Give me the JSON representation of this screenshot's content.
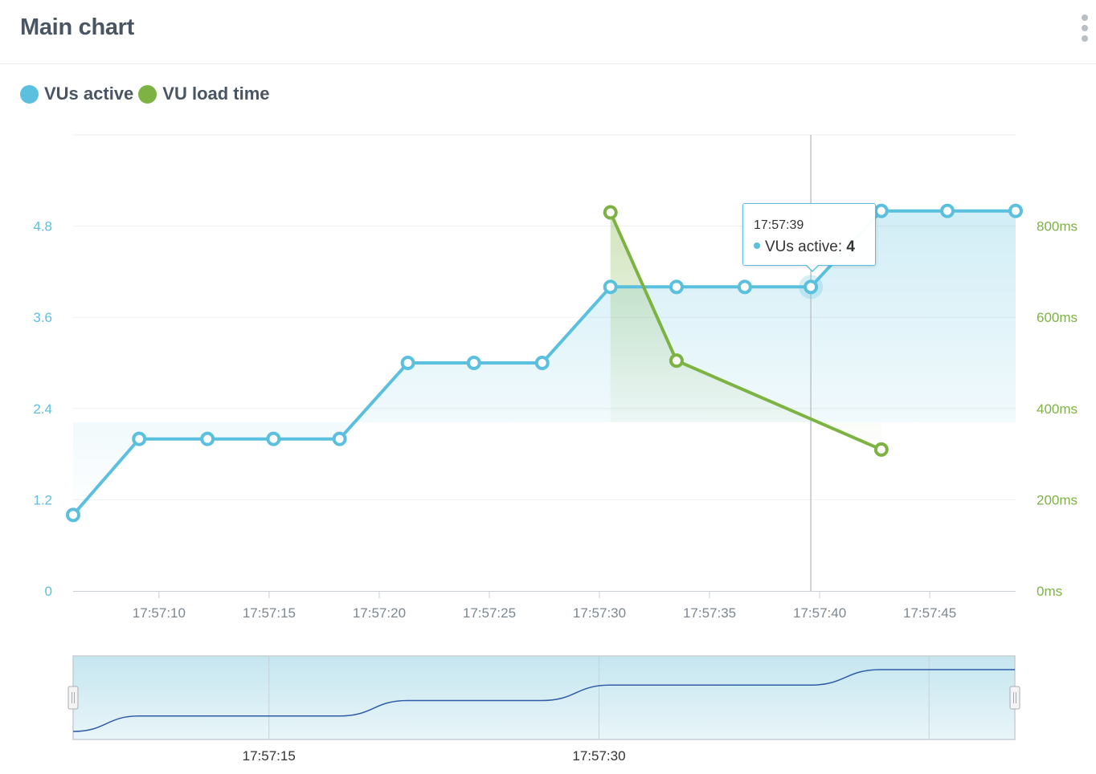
{
  "header": {
    "title": "Main chart",
    "menu_icon": "kebab-menu-icon"
  },
  "legend": [
    {
      "label": "VUs active",
      "color": "#5bc0de"
    },
    {
      "label": "VU load time",
      "color": "#7cb342"
    }
  ],
  "tooltip": {
    "time": "17:57:39",
    "series": "VUs active",
    "value": "4"
  },
  "colors": {
    "vus": "#5bc0de",
    "load": "#7cb342",
    "navigator_line": "#2e5aa8"
  },
  "chart_data": {
    "type": "line",
    "title": "Main chart",
    "x_axis": {
      "type": "time",
      "range": [
        "17:57:06.1",
        "17:57:48.9"
      ],
      "tick_labels": [
        "17:57:10",
        "17:57:15",
        "17:57:20",
        "17:57:25",
        "17:57:30",
        "17:57:35",
        "17:57:40",
        "17:57:45"
      ],
      "ticks": [
        "17:57:10",
        "17:57:15",
        "17:57:20",
        "17:57:25",
        "17:57:30",
        "17:57:35",
        "17:57:40",
        "17:57:45"
      ]
    },
    "y_axis_left": {
      "range": [
        0,
        6
      ],
      "tick_labels": [
        "0",
        "1.2",
        "2.4",
        "3.6",
        "4.8"
      ],
      "ticks": [
        0,
        1.2,
        2.4,
        3.6,
        4.8
      ]
    },
    "y_axis_right": {
      "range": [
        0,
        1000
      ],
      "tick_labels": [
        "0ms",
        "200ms",
        "400ms",
        "600ms",
        "800ms"
      ],
      "ticks": [
        0,
        200,
        400,
        600,
        800
      ]
    },
    "grid": true,
    "legend_position": "top-left",
    "series": [
      {
        "name": "VUs active",
        "axis": "left",
        "area": true,
        "x": [
          "17:57:06.1",
          "17:57:09.1",
          "17:57:12.2",
          "17:57:15.2",
          "17:57:18.2",
          "17:57:21.3",
          "17:57:24.3",
          "17:57:27.4",
          "17:57:30.5",
          "17:57:33.5",
          "17:57:36.6",
          "17:57:39.6",
          "17:57:42.8",
          "17:57:45.8",
          "17:57:48.9"
        ],
        "values": [
          1,
          2,
          2,
          2,
          2,
          3,
          3,
          3,
          4,
          4,
          4,
          4,
          5,
          5,
          5
        ]
      },
      {
        "name": "VU load time",
        "axis": "right",
        "unit": "ms",
        "area": true,
        "x": [
          "17:57:30.5",
          "17:57:33.5",
          "17:57:42.8"
        ],
        "values": [
          830,
          505,
          310
        ]
      }
    ],
    "hover": {
      "x": "17:57:39.6",
      "series": "VUs active",
      "value": 4
    },
    "navigator": {
      "tick_labels": [
        "17:57:15",
        "17:57:30"
      ],
      "ticks": [
        "17:57:15",
        "17:57:30"
      ],
      "range": [
        "17:57:06.1",
        "17:57:48.9"
      ]
    }
  }
}
